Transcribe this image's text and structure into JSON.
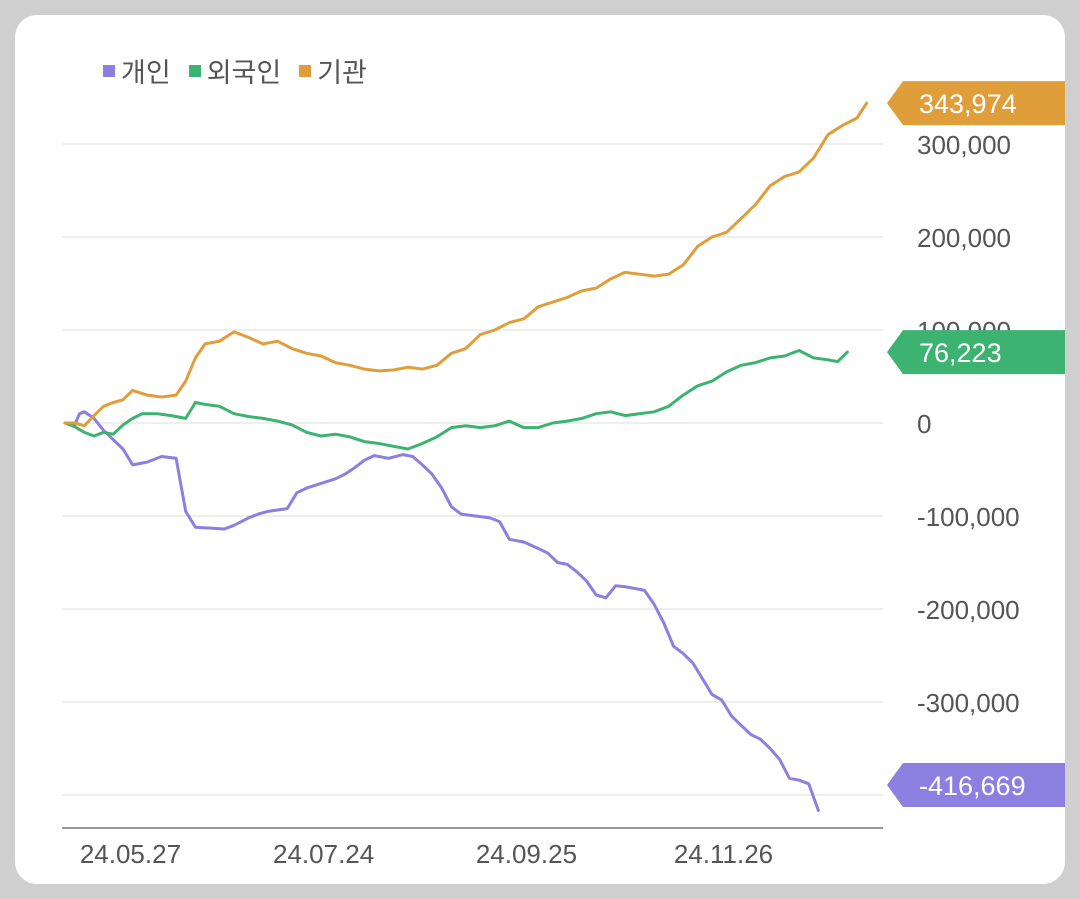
{
  "chart_data": {
    "type": "line",
    "legend_position": "top-left",
    "grid": true,
    "ylim": [
      -420000,
      350000
    ],
    "y_ticks": [
      {
        "value": 300000,
        "label": "300,000"
      },
      {
        "value": 200000,
        "label": "200,000"
      },
      {
        "value": 100000,
        "label": "100,000"
      },
      {
        "value": 0,
        "label": "0"
      },
      {
        "value": -100000,
        "label": "-100,000"
      },
      {
        "value": -200000,
        "label": "-200,000"
      },
      {
        "value": -300000,
        "label": "-300,000"
      }
    ],
    "x_ticks": [
      {
        "index": 1,
        "label": "24.05.27"
      },
      {
        "index": 41,
        "label": "24.07.24"
      },
      {
        "index": 83,
        "label": "24.09.25"
      },
      {
        "index": 124,
        "label": "24.11.26"
      }
    ],
    "n_points": 146,
    "series": [
      {
        "name": "개인",
        "color": "#8c7fe0",
        "last_label": "-416,669",
        "points": [
          [
            0,
            0
          ],
          [
            2,
            -2000
          ],
          [
            3,
            10000
          ],
          [
            4,
            12000
          ],
          [
            6,
            5000
          ],
          [
            8,
            -8000
          ],
          [
            10,
            -18000
          ],
          [
            12,
            -28000
          ],
          [
            14,
            -45000
          ],
          [
            17,
            -42000
          ],
          [
            20,
            -36000
          ],
          [
            23,
            -38000
          ],
          [
            25,
            -95000
          ],
          [
            27,
            -112000
          ],
          [
            30,
            -113000
          ],
          [
            33,
            -114000
          ],
          [
            35,
            -110000
          ],
          [
            38,
            -102000
          ],
          [
            40,
            -98000
          ],
          [
            42,
            -95000
          ],
          [
            46,
            -92000
          ],
          [
            48,
            -75000
          ],
          [
            50,
            -70000
          ],
          [
            53,
            -65000
          ],
          [
            56,
            -60000
          ],
          [
            58,
            -55000
          ],
          [
            60,
            -48000
          ],
          [
            62,
            -40000
          ],
          [
            64,
            -35000
          ],
          [
            67,
            -38000
          ],
          [
            70,
            -34000
          ],
          [
            72,
            -36000
          ],
          [
            74,
            -45000
          ],
          [
            76,
            -55000
          ],
          [
            78,
            -70000
          ],
          [
            80,
            -90000
          ],
          [
            82,
            -98000
          ],
          [
            85,
            -100000
          ],
          [
            88,
            -102000
          ],
          [
            90,
            -106000
          ],
          [
            92,
            -125000
          ],
          [
            95,
            -128000
          ],
          [
            98,
            -135000
          ],
          [
            100,
            -140000
          ],
          [
            102,
            -150000
          ],
          [
            104,
            -152000
          ],
          [
            106,
            -160000
          ],
          [
            108,
            -170000
          ],
          [
            110,
            -185000
          ],
          [
            112,
            -188000
          ],
          [
            114,
            -175000
          ],
          [
            116,
            -176000
          ],
          [
            118,
            -178000
          ],
          [
            120,
            -180000
          ],
          [
            122,
            -195000
          ],
          [
            124,
            -215000
          ],
          [
            126,
            -240000
          ],
          [
            128,
            -248000
          ],
          [
            130,
            -258000
          ],
          [
            132,
            -275000
          ],
          [
            134,
            -292000
          ],
          [
            136,
            -298000
          ],
          [
            138,
            -315000
          ],
          [
            140,
            -325000
          ],
          [
            142,
            -335000
          ],
          [
            144,
            -340000
          ],
          [
            146,
            -350000
          ],
          [
            148,
            -362000
          ],
          [
            150,
            -382000
          ],
          [
            152,
            -384000
          ],
          [
            154,
            -388000
          ],
          [
            156,
            -416669
          ]
        ]
      },
      {
        "name": "외국인",
        "color": "#3cb371",
        "last_label": "76,223",
        "points": [
          [
            0,
            0
          ],
          [
            2,
            -4000
          ],
          [
            4,
            -10000
          ],
          [
            6,
            -14000
          ],
          [
            8,
            -10000
          ],
          [
            10,
            -12000
          ],
          [
            12,
            -2000
          ],
          [
            14,
            5000
          ],
          [
            16,
            10000
          ],
          [
            19,
            10000
          ],
          [
            22,
            8000
          ],
          [
            25,
            5000
          ],
          [
            27,
            22000
          ],
          [
            29,
            20000
          ],
          [
            32,
            18000
          ],
          [
            35,
            10000
          ],
          [
            38,
            7000
          ],
          [
            41,
            5000
          ],
          [
            44,
            2000
          ],
          [
            47,
            -2000
          ],
          [
            50,
            -10000
          ],
          [
            53,
            -14000
          ],
          [
            56,
            -12000
          ],
          [
            59,
            -15000
          ],
          [
            62,
            -20000
          ],
          [
            65,
            -22000
          ],
          [
            68,
            -25000
          ],
          [
            71,
            -28000
          ],
          [
            74,
            -22000
          ],
          [
            77,
            -15000
          ],
          [
            80,
            -5000
          ],
          [
            83,
            -3000
          ],
          [
            86,
            -5000
          ],
          [
            89,
            -3000
          ],
          [
            92,
            2000
          ],
          [
            95,
            -5000
          ],
          [
            98,
            -5000
          ],
          [
            101,
            0
          ],
          [
            104,
            2000
          ],
          [
            107,
            5000
          ],
          [
            110,
            10000
          ],
          [
            113,
            12000
          ],
          [
            116,
            8000
          ],
          [
            119,
            10000
          ],
          [
            122,
            12000
          ],
          [
            125,
            18000
          ],
          [
            128,
            30000
          ],
          [
            131,
            40000
          ],
          [
            134,
            45000
          ],
          [
            137,
            55000
          ],
          [
            140,
            62000
          ],
          [
            143,
            65000
          ],
          [
            146,
            70000
          ],
          [
            149,
            72000
          ],
          [
            152,
            78000
          ],
          [
            155,
            70000
          ],
          [
            158,
            68000
          ],
          [
            160,
            66000
          ],
          [
            162,
            76223
          ]
        ]
      },
      {
        "name": "기관",
        "color": "#e09e3a",
        "last_label": "343,974",
        "points": [
          [
            0,
            0
          ],
          [
            2,
            0
          ],
          [
            4,
            -3000
          ],
          [
            6,
            8000
          ],
          [
            8,
            18000
          ],
          [
            10,
            22000
          ],
          [
            12,
            25000
          ],
          [
            14,
            35000
          ],
          [
            17,
            30000
          ],
          [
            20,
            28000
          ],
          [
            23,
            30000
          ],
          [
            25,
            45000
          ],
          [
            27,
            70000
          ],
          [
            29,
            85000
          ],
          [
            32,
            88000
          ],
          [
            35,
            98000
          ],
          [
            38,
            92000
          ],
          [
            41,
            85000
          ],
          [
            44,
            88000
          ],
          [
            47,
            80000
          ],
          [
            50,
            75000
          ],
          [
            53,
            72000
          ],
          [
            56,
            65000
          ],
          [
            59,
            62000
          ],
          [
            62,
            58000
          ],
          [
            65,
            56000
          ],
          [
            68,
            57000
          ],
          [
            71,
            60000
          ],
          [
            74,
            58000
          ],
          [
            77,
            62000
          ],
          [
            80,
            75000
          ],
          [
            83,
            80000
          ],
          [
            86,
            95000
          ],
          [
            89,
            100000
          ],
          [
            92,
            108000
          ],
          [
            95,
            112000
          ],
          [
            98,
            125000
          ],
          [
            101,
            130000
          ],
          [
            104,
            135000
          ],
          [
            107,
            142000
          ],
          [
            110,
            145000
          ],
          [
            113,
            155000
          ],
          [
            116,
            162000
          ],
          [
            119,
            160000
          ],
          [
            122,
            158000
          ],
          [
            125,
            160000
          ],
          [
            128,
            170000
          ],
          [
            131,
            190000
          ],
          [
            134,
            200000
          ],
          [
            137,
            205000
          ],
          [
            140,
            220000
          ],
          [
            143,
            235000
          ],
          [
            146,
            255000
          ],
          [
            149,
            265000
          ],
          [
            152,
            270000
          ],
          [
            155,
            285000
          ],
          [
            158,
            310000
          ],
          [
            161,
            320000
          ],
          [
            164,
            328000
          ],
          [
            166,
            343974
          ]
        ]
      }
    ]
  }
}
